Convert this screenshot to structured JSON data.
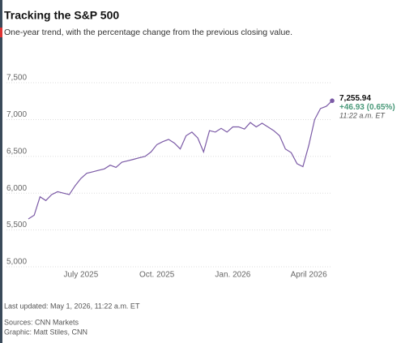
{
  "chart_data": {
    "type": "line",
    "title": "Tracking the S&P 500",
    "subtitle": "One-year trend, with the percentage change from the previous closing value.",
    "categories": [
      null,
      null,
      null,
      null,
      null,
      null,
      null,
      null,
      null,
      "July 2025",
      null,
      null,
      null,
      null,
      null,
      null,
      null,
      null,
      null,
      null,
      null,
      null,
      "Oct. 2025",
      null,
      null,
      null,
      null,
      null,
      null,
      null,
      null,
      null,
      null,
      null,
      null,
      "Jan. 2026",
      null,
      null,
      null,
      null,
      null,
      null,
      null,
      null,
      null,
      null,
      null,
      null,
      "April 2026",
      null,
      null,
      null,
      null
    ],
    "series": [
      {
        "color": "#7b5aa6",
        "values": [
          5650,
          5700,
          5950,
          5900,
          5980,
          6020,
          6000,
          5980,
          6100,
          6200,
          6270,
          6290,
          6310,
          6330,
          6380,
          6350,
          6420,
          6440,
          6460,
          6480,
          6500,
          6560,
          6660,
          6700,
          6730,
          6680,
          6600,
          6780,
          6830,
          6750,
          6560,
          6850,
          6830,
          6880,
          6830,
          6900,
          6900,
          6870,
          6960,
          6900,
          6950,
          6900,
          6850,
          6780,
          6600,
          6550,
          6400,
          6360,
          6650,
          7000,
          7150,
          7180,
          7255.94
        ],
        "value_labels": [
          null,
          null,
          null,
          null,
          null,
          null,
          null,
          null,
          null,
          null,
          null,
          null,
          null,
          null,
          null,
          null,
          null,
          null,
          null,
          null,
          null,
          null,
          null,
          null,
          null,
          null,
          null,
          null,
          null,
          null,
          null,
          null,
          null,
          null,
          null,
          null,
          null,
          null,
          null,
          null,
          null,
          null,
          null,
          null,
          null,
          null,
          null,
          null,
          null,
          null,
          null,
          null,
          "7,255.94"
        ]
      }
    ],
    "change_label": "+46.93 (0.65%)",
    "time_label": "11:22 a.m. ET",
    "ylim": [
      4950,
      7580
    ],
    "yticks": [
      {
        "value": 5000,
        "label": "5,000"
      },
      {
        "value": 5500,
        "label": "5,500"
      },
      {
        "value": 6000,
        "label": "6,000"
      },
      {
        "value": 6500,
        "label": "6,500"
      },
      {
        "value": 7000,
        "label": "7,000"
      },
      {
        "value": 7500,
        "label": "7,500"
      }
    ],
    "grid": true,
    "last_updated": "Last updated: May 1, 2026, 11:22 a.m. ET",
    "sources": "Sources: CNN Markets",
    "graphic": "Graphic: Matt Stiles, CNN"
  }
}
